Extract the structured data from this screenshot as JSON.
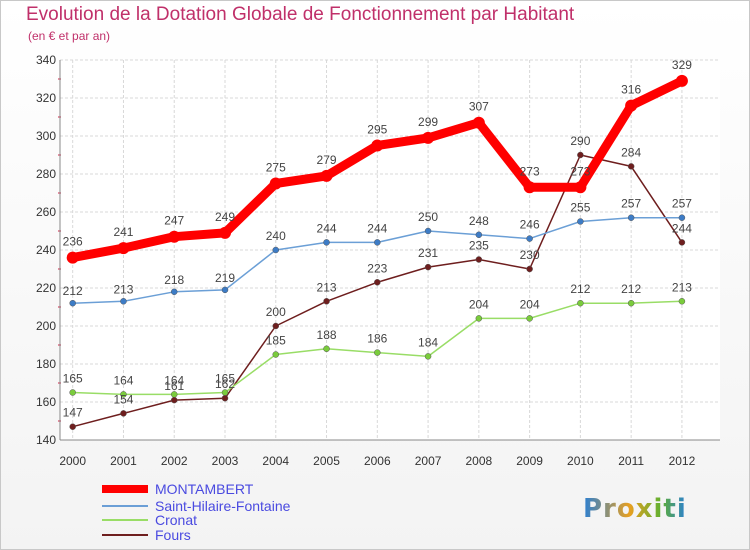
{
  "title": "Evolution de la Dotation Globale de Fonctionnement par Habitant",
  "subtitle": "(en € et par an)",
  "logo_text": "Proxiti",
  "chart_data": {
    "type": "line",
    "title": "Evolution de la Dotation Globale de Fonctionnement par Habitant",
    "subtitle": "(en € et par an)",
    "x": [
      "2000",
      "2001",
      "2002",
      "2003",
      "2004",
      "2005",
      "2006",
      "2007",
      "2008",
      "2009",
      "2010",
      "2011",
      "2012"
    ],
    "ylim": [
      140,
      340
    ],
    "yticks": [
      140,
      160,
      180,
      200,
      220,
      240,
      260,
      280,
      300,
      320,
      340
    ],
    "grid": true,
    "legend_position": "bottom-left",
    "series": [
      {
        "name": "MONTAMBERT",
        "color": "#ff0000",
        "values": [
          236,
          241,
          247,
          249,
          275,
          279,
          295,
          299,
          307,
          273,
          273,
          316,
          329
        ]
      },
      {
        "name": "Saint-Hilaire-Fontaine",
        "color": "#6b9fd6",
        "values": [
          212,
          213,
          218,
          219,
          240,
          244,
          244,
          250,
          248,
          246,
          255,
          257,
          257
        ]
      },
      {
        "name": "Cronat",
        "color": "#99dd66",
        "values": [
          165,
          164,
          164,
          165,
          185,
          188,
          186,
          184,
          204,
          204,
          212,
          212,
          213
        ]
      },
      {
        "name": "Fours",
        "color": "#6e1e1e",
        "values": [
          147,
          154,
          161,
          162,
          200,
          213,
          223,
          231,
          235,
          230,
          290,
          284,
          244
        ]
      }
    ],
    "data_labels": [
      [
        "236",
        "241",
        "247",
        "249",
        "275",
        "279",
        "295",
        "299",
        "307",
        "273",
        "273",
        "316",
        "329"
      ],
      [
        "212",
        "213",
        "218",
        "219",
        "240",
        "244",
        "244",
        "250",
        "248",
        "246",
        "255",
        "257",
        "257"
      ],
      [
        "165",
        "164",
        "164",
        "165",
        "185",
        "188",
        "186",
        "184",
        "204",
        "204",
        "212",
        "212",
        "213"
      ],
      [
        "147",
        "154",
        "161",
        "162",
        "200",
        "213",
        "223",
        "231",
        "235",
        "230",
        "290",
        "284",
        "244"
      ]
    ]
  }
}
